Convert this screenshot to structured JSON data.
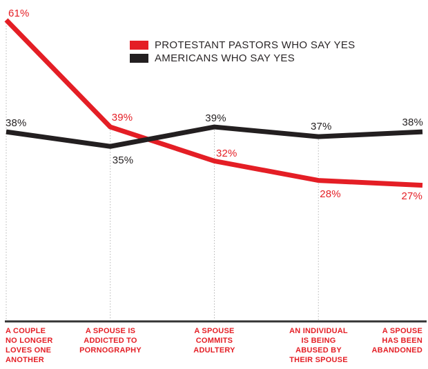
{
  "chart_data": {
    "type": "line",
    "title": "",
    "xlabel": "",
    "ylabel": "",
    "value_suffix": "%",
    "ylim": [
      0,
      65
    ],
    "grid": "dotted vertical guide at each category except the last",
    "legend_position": "top-center",
    "categories": [
      "A COUPLE\nNO LONGER\nLOVES ONE\nANOTHER",
      "A SPOUSE IS\nADDICTED TO\nPORNOGRAPHY",
      "A SPOUSE\nCOMMITS\nADULTERY",
      "AN INDIVIDUAL\nIS BEING\nABUSED BY\nTHEIR SPOUSE",
      "A SPOUSE\nHAS BEEN\nABANDONED"
    ],
    "series": [
      {
        "name": "PROTESTANT PASTORS WHO SAY YES",
        "color": "#e41e25",
        "values": [
          61,
          39,
          32,
          28,
          27
        ],
        "labels": [
          "61%",
          "39%",
          "32%",
          "28%",
          "27%"
        ]
      },
      {
        "name": "AMERICANS WHO SAY YES",
        "color": "#231f20",
        "values": [
          38,
          35,
          39,
          37,
          38
        ],
        "labels": [
          "38%",
          "35%",
          "39%",
          "37%",
          "38%"
        ]
      }
    ],
    "colors": {
      "axis": "#333333",
      "gridline": "#b3b3b3",
      "category_labels": "#e41e25",
      "background": "#ffffff"
    }
  }
}
